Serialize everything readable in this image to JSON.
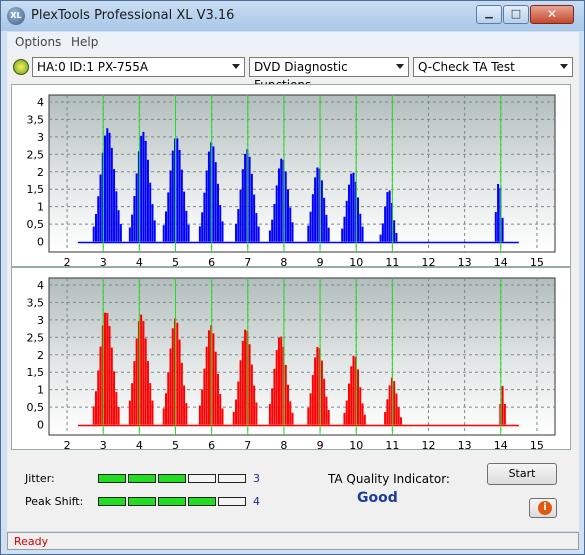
{
  "window": {
    "title": "PlexTools Professional XL V3.16",
    "logo_text": "XL"
  },
  "window_controls": {
    "minimize": "▁",
    "maximize": "□",
    "close": "✕"
  },
  "menu": [
    {
      "label": "Options"
    },
    {
      "label": "Help"
    }
  ],
  "toolbar": {
    "drive": "HA:0 ID:1  PX-755A",
    "function": "DVD Diagnostic Functions",
    "test": "Q-Check TA Test"
  },
  "chart_data": [
    {
      "type": "bar",
      "color": "#0000ff",
      "xlim": [
        1.5,
        15.5
      ],
      "ylim": [
        -0.3,
        4.2
      ],
      "x_ticks": [
        "2",
        "3",
        "4",
        "5",
        "6",
        "7",
        "8",
        "9",
        "10",
        "11",
        "12",
        "13",
        "14",
        "15"
      ],
      "y_ticks": [
        "0",
        "0,5",
        "1",
        "1,5",
        "2",
        "2,5",
        "3",
        "3,5",
        "4"
      ],
      "markers": [
        3,
        4,
        5,
        6,
        7,
        8,
        9,
        10,
        11,
        14
      ],
      "peaks": [
        {
          "center": 3.12,
          "height": 3.25,
          "width": 0.34
        },
        {
          "center": 4.1,
          "height": 3.15,
          "width": 0.32
        },
        {
          "center": 5.02,
          "height": 3.0,
          "width": 0.32
        },
        {
          "center": 6.0,
          "height": 2.85,
          "width": 0.3
        },
        {
          "center": 6.98,
          "height": 2.65,
          "width": 0.3
        },
        {
          "center": 7.95,
          "height": 2.4,
          "width": 0.3
        },
        {
          "center": 8.95,
          "height": 2.15,
          "width": 0.28
        },
        {
          "center": 9.9,
          "height": 2.0,
          "width": 0.28
        },
        {
          "center": 10.9,
          "height": 1.5,
          "width": 0.2
        },
        {
          "center": 13.95,
          "height": 1.75,
          "width": 0.13
        }
      ]
    },
    {
      "type": "bar",
      "color": "#ff0000",
      "xlim": [
        1.5,
        15.5
      ],
      "ylim": [
        -0.3,
        4.2
      ],
      "x_ticks": [
        "2",
        "3",
        "4",
        "5",
        "6",
        "7",
        "8",
        "9",
        "10",
        "11",
        "12",
        "13",
        "14",
        "15"
      ],
      "y_ticks": [
        "0",
        "0,5",
        "1",
        "1,5",
        "2",
        "2,5",
        "3",
        "3,5",
        "4"
      ],
      "markers": [
        3,
        4,
        5,
        6,
        7,
        8,
        9,
        10,
        11,
        14
      ],
      "peaks": [
        {
          "center": 3.08,
          "height": 3.25,
          "width": 0.32
        },
        {
          "center": 4.05,
          "height": 3.15,
          "width": 0.32
        },
        {
          "center": 5.0,
          "height": 3.05,
          "width": 0.3
        },
        {
          "center": 5.98,
          "height": 2.85,
          "width": 0.3
        },
        {
          "center": 6.95,
          "height": 2.75,
          "width": 0.3
        },
        {
          "center": 7.9,
          "height": 2.55,
          "width": 0.3
        },
        {
          "center": 8.95,
          "height": 2.25,
          "width": 0.28
        },
        {
          "center": 9.95,
          "height": 2.0,
          "width": 0.26
        },
        {
          "center": 11.0,
          "height": 1.35,
          "width": 0.22
        },
        {
          "center": 14.05,
          "height": 1.1,
          "width": 0.1
        }
      ]
    }
  ],
  "jitter": {
    "label": "Jitter:",
    "value": "3",
    "filled": 3,
    "total": 5
  },
  "peak_shift": {
    "label": "Peak Shift:",
    "value": "4",
    "filled": 4,
    "total": 5
  },
  "ta_quality": {
    "label": "TA Quality Indicator:",
    "value": "Good"
  },
  "start_button": "Start",
  "info_button_icon": "info-icon",
  "status": "Ready"
}
